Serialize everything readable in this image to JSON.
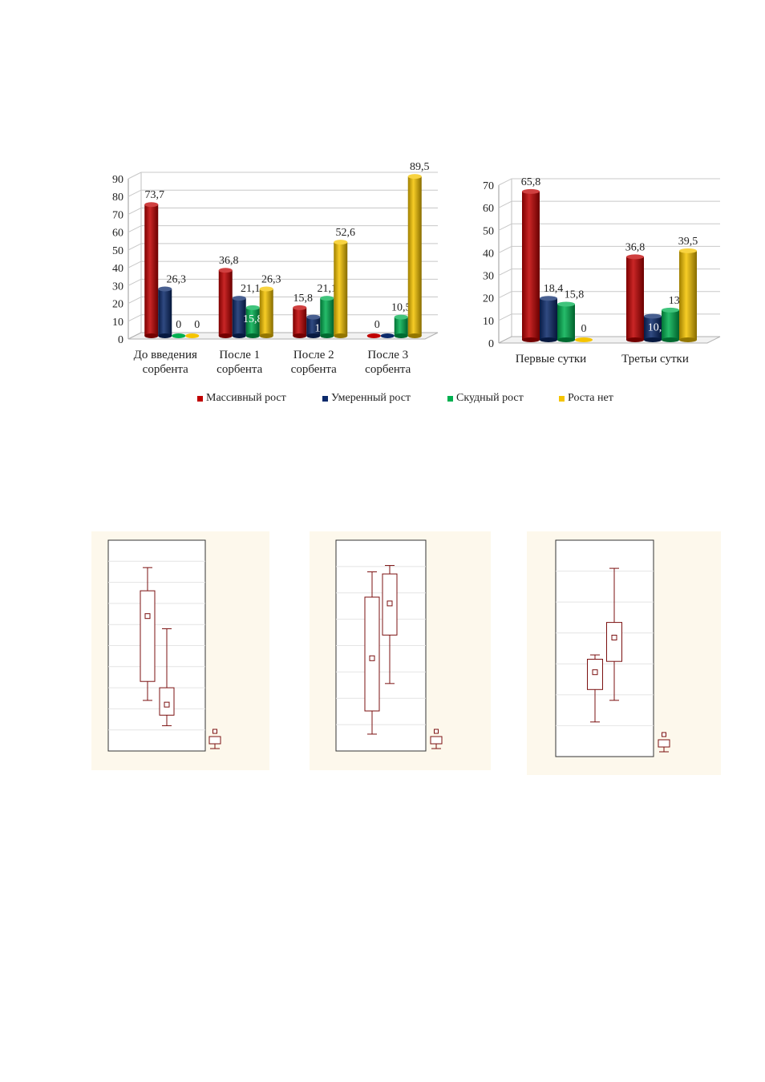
{
  "colors": {
    "massive": "#c00000",
    "moderate": "#0b2a6b",
    "scant": "#00b050",
    "none": "#f5c400",
    "box": "#7b1010",
    "box_bg": "#fdf8ec"
  },
  "legend": [
    {
      "label": "Массивный рост",
      "color": "#c00000"
    },
    {
      "label": "Умеренный рост",
      "color": "#0b2a6b"
    },
    {
      "label": "Скудный рост",
      "color": "#00b050"
    },
    {
      "label": "Роста нет",
      "color": "#f5c400"
    }
  ],
  "chart_data": [
    {
      "type": "bar",
      "categories": [
        [
          "До введения",
          "сорбента"
        ],
        [
          "После 1",
          "сорбента"
        ],
        [
          "После 2",
          "сорбента"
        ],
        [
          "После 3",
          "сорбента"
        ]
      ],
      "series": [
        {
          "name": "Массивный рост",
          "values": [
            73.7,
            36.8,
            15.8,
            0
          ],
          "labels": [
            "73,7",
            "36,8",
            "15,8",
            "0"
          ]
        },
        {
          "name": "Умеренный рост",
          "values": [
            26.3,
            21.1,
            10.5,
            0
          ],
          "labels": [
            "26,3",
            "21,1",
            "10,5",
            "0"
          ]
        },
        {
          "name": "Скудный рост",
          "values": [
            0,
            15.8,
            21.1,
            10.5
          ],
          "labels": [
            "0",
            "15,8",
            "21,1",
            "10,5"
          ]
        },
        {
          "name": "Роста нет",
          "values": [
            0,
            26.3,
            52.6,
            89.5
          ],
          "labels": [
            "0",
            "26,3",
            "52,6",
            "89,5"
          ]
        }
      ],
      "yticks": [
        "0",
        "10",
        "20",
        "30",
        "40",
        "50",
        "60",
        "70",
        "80",
        "90"
      ],
      "ylim": [
        0,
        90
      ],
      "grid": true
    },
    {
      "type": "bar",
      "categories": [
        [
          "Первые сутки"
        ],
        [
          "Третьи сутки"
        ]
      ],
      "series": [
        {
          "name": "Массивный рост",
          "values": [
            65.8,
            36.8
          ],
          "labels": [
            "65,8",
            "36,8"
          ]
        },
        {
          "name": "Умеренный рост",
          "values": [
            18.4,
            10.5
          ],
          "labels": [
            "18,4",
            "10,5"
          ]
        },
        {
          "name": "Скудный рост",
          "values": [
            15.8,
            13.2
          ],
          "labels": [
            "15,8",
            "13,2"
          ]
        },
        {
          "name": "Роста нет",
          "values": [
            0,
            39.5
          ],
          "labels": [
            "0",
            "39,5"
          ]
        }
      ],
      "yticks": [
        "0",
        "10",
        "20",
        "30",
        "40",
        "50",
        "60",
        "70"
      ],
      "ylim": [
        0,
        70
      ],
      "grid": true
    },
    {
      "type": "box",
      "ylim": [
        0,
        1
      ],
      "boxes": [
        {
          "whisker_low": 0.24,
          "q1": 0.33,
          "median": 0.64,
          "q3": 0.76,
          "whisker_high": 0.87
        },
        {
          "whisker_low": 0.12,
          "q1": 0.17,
          "median": 0.22,
          "q3": 0.3,
          "whisker_high": 0.58
        }
      ]
    },
    {
      "type": "box",
      "ylim": [
        0,
        1
      ],
      "boxes": [
        {
          "whisker_low": 0.08,
          "q1": 0.19,
          "median": 0.44,
          "q3": 0.73,
          "whisker_high": 0.85
        },
        {
          "whisker_low": 0.32,
          "q1": 0.55,
          "median": 0.7,
          "q3": 0.84,
          "whisker_high": 0.88
        }
      ]
    },
    {
      "type": "box",
      "ylim": [
        0,
        1
      ],
      "boxes": [
        {
          "whisker_low": 0.16,
          "q1": 0.31,
          "median": 0.39,
          "q3": 0.45,
          "whisker_high": 0.47
        },
        {
          "whisker_low": 0.26,
          "q1": 0.44,
          "median": 0.55,
          "q3": 0.62,
          "whisker_high": 0.87
        }
      ]
    }
  ]
}
